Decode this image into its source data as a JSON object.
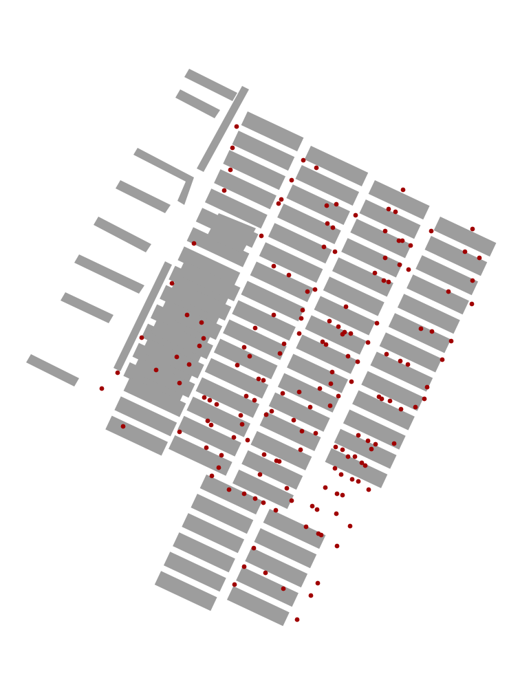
{
  "map": {
    "block_color": "#9d9d9d",
    "point_color": "#a00000",
    "background": "#ffffff",
    "north_up": false,
    "has_labels": false,
    "has_legend": false
  }
}
